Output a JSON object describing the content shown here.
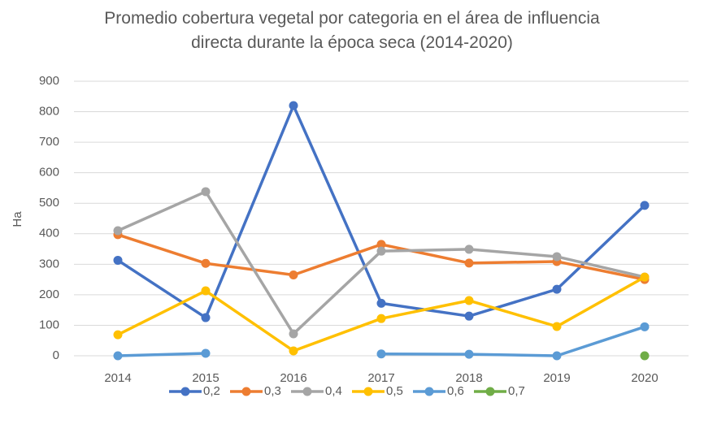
{
  "chart_data": {
    "type": "line",
    "title": "Promedio cobertura vegetal por categoria en el área de influencia directa durante la época seca (2014-2020)",
    "y_label": "Ha",
    "categories": [
      "2014",
      "2015",
      "2016",
      "2017",
      "2018",
      "2019",
      "2020"
    ],
    "series": [
      {
        "name": "0,2",
        "color": "#4472c4",
        "values": [
          313,
          125,
          820,
          172,
          130,
          218,
          493
        ]
      },
      {
        "name": "0,3",
        "color": "#ed7d31",
        "values": [
          397,
          303,
          265,
          365,
          304,
          309,
          250
        ]
      },
      {
        "name": "0,4",
        "color": "#a5a5a5",
        "values": [
          410,
          538,
          72,
          343,
          349,
          325,
          258
        ]
      },
      {
        "name": "0,5",
        "color": "#ffc000",
        "values": [
          69,
          213,
          16,
          122,
          181,
          96,
          258
        ]
      },
      {
        "name": "0,6",
        "color": "#5b9bd5",
        "values": [
          0,
          8,
          null,
          6,
          5,
          0,
          95
        ]
      },
      {
        "name": "0,7",
        "color": "#70ad47",
        "values": [
          null,
          null,
          null,
          null,
          null,
          null,
          0
        ]
      }
    ],
    "ylim": [
      0,
      900
    ],
    "yticks": [
      0,
      100,
      200,
      300,
      400,
      500,
      600,
      700,
      800,
      900
    ],
    "grid": true,
    "legend": "bottom"
  }
}
